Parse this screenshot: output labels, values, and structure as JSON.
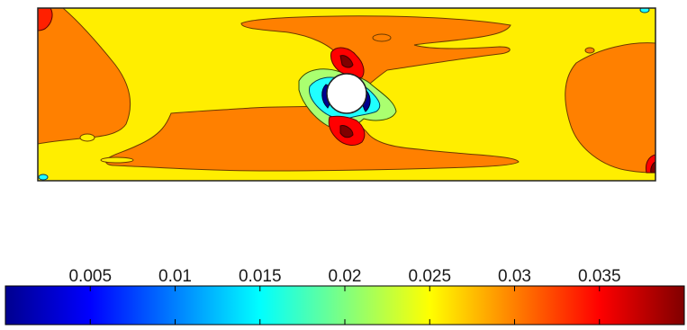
{
  "chart_data": {
    "type": "heatmap",
    "title": "",
    "xlabel": "",
    "ylabel": "",
    "grid": false,
    "obstacle": "circle",
    "contour_levels": [
      {
        "level": 0.005,
        "color": "#00008f"
      },
      {
        "level": 0.015,
        "color": "#00ffff"
      },
      {
        "level": 0.02,
        "color": "#7fffb0"
      },
      {
        "level": 0.025,
        "color": "#ffff00"
      },
      {
        "level": 0.03,
        "color": "#ff8000"
      },
      {
        "level": 0.035,
        "color": "#ff0000"
      },
      {
        "level": 0.04,
        "color": "#800000"
      }
    ],
    "colorbar": {
      "orientation": "horizontal",
      "placement": "bottom",
      "colormap": "jet",
      "range": [
        0,
        0.04
      ],
      "ticks": [
        0.005,
        0.01,
        0.015,
        0.02,
        0.025,
        0.03,
        0.035
      ],
      "tick_labels": [
        "0.005",
        "0.01",
        "0.015",
        "0.02",
        "0.025",
        "0.03",
        "0.035"
      ]
    }
  }
}
